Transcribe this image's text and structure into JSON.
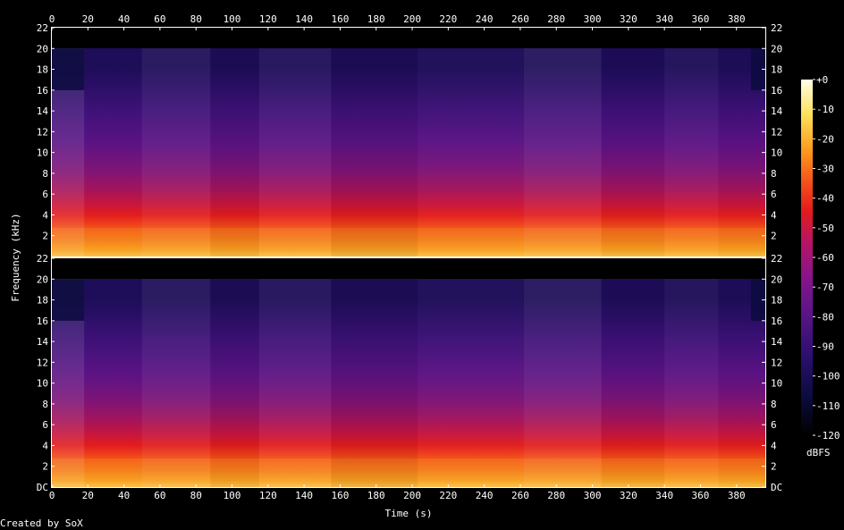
{
  "credit": "Created by SoX",
  "chart_data": {
    "type": "heatmap",
    "xlabel": "Time (s)",
    "ylabel": "Frequency (kHz)",
    "colorbar_label": "dBFS",
    "xlim": [
      0,
      396
    ],
    "x_ticks": [
      0,
      20,
      40,
      60,
      80,
      100,
      120,
      140,
      160,
      180,
      200,
      220,
      240,
      260,
      280,
      300,
      320,
      340,
      360,
      380
    ],
    "ylim_khz": [
      0,
      22
    ],
    "panel_top_labels": [
      "22",
      "20",
      "18",
      "16",
      "14",
      "12",
      "10",
      "8",
      "6",
      "4",
      "2"
    ],
    "panel_bottom_labels": [
      "22",
      "20",
      "18",
      "16",
      "14",
      "12",
      "10",
      "8",
      "6",
      "4",
      "2",
      "DC"
    ],
    "colorbar_ticks": [
      "+0",
      "-10",
      "-20",
      "-30",
      "-40",
      "-50",
      "-60",
      "-70",
      "-80",
      "-90",
      "-100",
      "-110",
      "-120"
    ],
    "colorbar_range_db": [
      -120,
      0
    ],
    "channels": 2,
    "approx_level_db_by_freq_khz": [
      {
        "f": 0.5,
        "db": -28
      },
      {
        "f": 2,
        "db": -38
      },
      {
        "f": 4,
        "db": -50
      },
      {
        "f": 6,
        "db": -60
      },
      {
        "f": 8,
        "db": -68
      },
      {
        "f": 10,
        "db": -75
      },
      {
        "f": 12,
        "db": -80
      },
      {
        "f": 14,
        "db": -84
      },
      {
        "f": 16,
        "db": -88
      },
      {
        "f": 18,
        "db": -105
      },
      {
        "f": 20,
        "db": -108
      },
      {
        "f": 22,
        "db": -120
      }
    ],
    "cutoff_khz": 20,
    "colormap": [
      "#000000",
      "#0a0b3a",
      "#2a0f6e",
      "#5a1488",
      "#8a148a",
      "#bb1460",
      "#e41a1c",
      "#f5581a",
      "#fb9a1c",
      "#fde05a",
      "#ffffe6",
      "#ffffff"
    ]
  }
}
